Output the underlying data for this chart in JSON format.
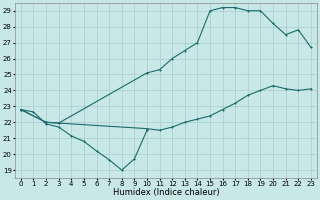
{
  "xlabel": "Humidex (Indice chaleur)",
  "xlim": [
    -0.5,
    23.5
  ],
  "ylim": [
    18.5,
    29.5
  ],
  "xticks": [
    0,
    1,
    2,
    3,
    4,
    5,
    6,
    7,
    8,
    9,
    10,
    11,
    12,
    13,
    14,
    15,
    16,
    17,
    18,
    19,
    20,
    21,
    22,
    23
  ],
  "yticks": [
    19,
    20,
    21,
    22,
    23,
    24,
    25,
    26,
    27,
    28,
    29
  ],
  "bg_color": "#c8e8e8",
  "line_color": "#1a6b6b",
  "grid_color": "#a8cccc",
  "curve1_x": [
    0,
    1,
    2,
    3,
    4,
    5,
    6,
    7,
    8,
    9,
    10
  ],
  "curve1_y": [
    22.8,
    22.65,
    21.9,
    21.7,
    21.15,
    20.8,
    20.2,
    19.65,
    19.0,
    19.7,
    21.5
  ],
  "curve2_x": [
    0,
    2,
    3,
    10,
    11,
    12,
    13,
    14,
    15,
    16,
    17,
    18,
    19,
    20,
    21,
    22,
    23
  ],
  "curve2_y": [
    22.8,
    22.0,
    21.95,
    25.1,
    25.3,
    26.0,
    26.5,
    27.0,
    29.0,
    29.2,
    29.2,
    29.0,
    29.0,
    28.2,
    27.5,
    27.8,
    26.7
  ],
  "curve3_x": [
    0,
    2,
    3,
    10,
    11,
    12,
    13,
    14,
    15,
    16,
    17,
    18,
    19,
    20,
    21,
    22,
    23
  ],
  "curve3_y": [
    22.8,
    22.0,
    21.95,
    21.6,
    21.5,
    21.7,
    22.0,
    22.2,
    22.4,
    22.8,
    23.2,
    23.7,
    24.0,
    24.3,
    24.1,
    24.0,
    24.1
  ]
}
